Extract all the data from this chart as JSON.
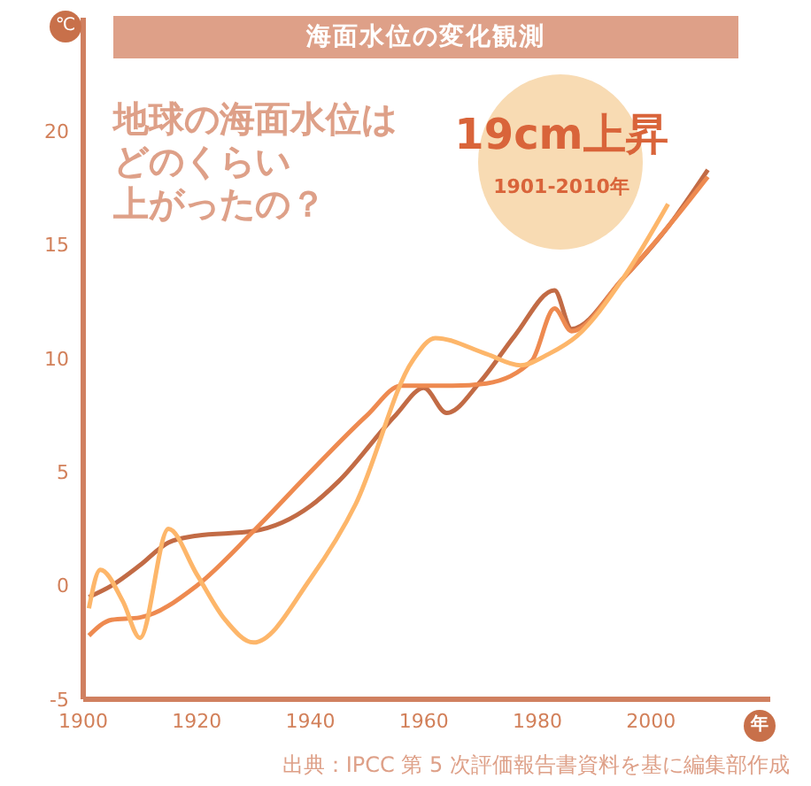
{
  "chart_data": {
    "type": "line",
    "title": "海面水位の変化観測",
    "xlabel": "年",
    "ylabel": "℃",
    "annotations": [
      "地球の海面水位はどのくらい上がったの？",
      "19cm上昇",
      "1901-2010年",
      "出典：IPCC 第 5 次評価報告書資料を基に編集部作成"
    ],
    "xlim": [
      1900,
      2021
    ],
    "xticks": [
      1900,
      1920,
      1940,
      1960,
      1980,
      2000
    ],
    "ylim": [
      -5,
      25
    ],
    "yticks": [
      -5,
      0,
      5,
      10,
      15,
      20
    ],
    "grid": false,
    "legend": false,
    "marker": "none",
    "line_style": "solid",
    "series": [
      {
        "color": "#c26b45",
        "x": [
          1901,
          1905,
          1910,
          1915,
          1920,
          1930,
          1940,
          1945,
          1955,
          1960,
          1964,
          1970,
          1976,
          1983,
          1986,
          1995,
          2003,
          2010
        ],
        "values": [
          -0.5,
          0,
          0.9,
          1.9,
          2.2,
          2.4,
          3.5,
          4.6,
          7.5,
          8.7,
          7.6,
          9,
          11,
          13,
          11.3,
          13.5,
          15.8,
          18.3
        ]
      },
      {
        "color": "#ee8a50",
        "x": [
          1901,
          1905,
          1910,
          1920,
          1930,
          1940,
          1950,
          1956,
          1965,
          1971,
          1979,
          1983,
          1986,
          1995,
          2003,
          2010
        ],
        "values": [
          -2.2,
          -1.5,
          -1.4,
          0,
          2.4,
          5,
          7.5,
          8.8,
          8.8,
          8.9,
          9.9,
          12.2,
          11.2,
          13.5,
          15.8,
          18
        ]
      },
      {
        "color": "#fdb66a",
        "x": [
          1901,
          1903,
          1907,
          1910,
          1915,
          1920,
          1925,
          1930,
          1940,
          1948,
          1958,
          1962,
          1971,
          1977,
          1982,
          1987,
          1995,
          2003
        ],
        "values": [
          -1,
          0.7,
          -0.7,
          -2.3,
          2.5,
          0.5,
          -1.5,
          -2.5,
          0.3,
          3.6,
          9.9,
          10.9,
          10.2,
          9.7,
          10.2,
          11,
          13.5,
          16.8
        ]
      }
    ]
  }
}
